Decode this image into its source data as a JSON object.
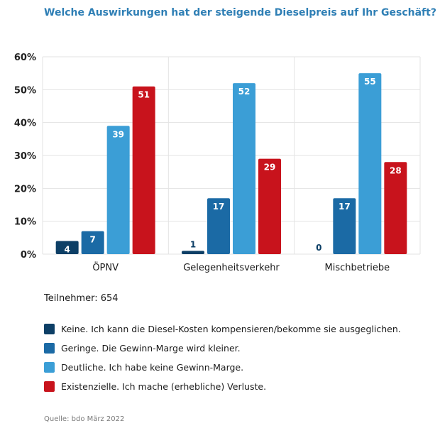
{
  "chart_data": {
    "type": "bar",
    "title": "Welche Auswirkungen hat der steigende Dieselpreis auf Ihr Geschäft?",
    "categories": [
      "ÖPNV",
      "Gelegenheitsverkehr",
      "Mischbetriebe"
    ],
    "series": [
      {
        "name": "Keine. Ich kann die Diesel-Kosten kompensieren/bekomme sie ausgeglichen.",
        "color": "#0d3f66",
        "values": [
          4,
          1,
          0
        ]
      },
      {
        "name": "Geringe. Die Gewinn-Marge wird kleiner.",
        "color": "#1b6aa5",
        "values": [
          7,
          17,
          17
        ]
      },
      {
        "name": "Deutliche. Ich habe keine Gewinn-Marge.",
        "color": "#3b9ed6",
        "values": [
          39,
          52,
          55
        ]
      },
      {
        "name": "Existenzielle. Ich mache (erhebliche) Verluste.",
        "color": "#c8131c",
        "values": [
          51,
          29,
          28
        ]
      }
    ],
    "ylim": [
      0,
      60
    ],
    "yticks": [
      0,
      10,
      20,
      30,
      40,
      50,
      60
    ],
    "ytick_labels": [
      "0%",
      "10%",
      "20%",
      "30%",
      "40%",
      "50%",
      "60%"
    ],
    "xlabel": "",
    "ylabel": "",
    "grid": true,
    "legend_position": "bottom"
  },
  "participants": "Teilnehmer: 654",
  "source": "Quelle: bdo März 2022"
}
